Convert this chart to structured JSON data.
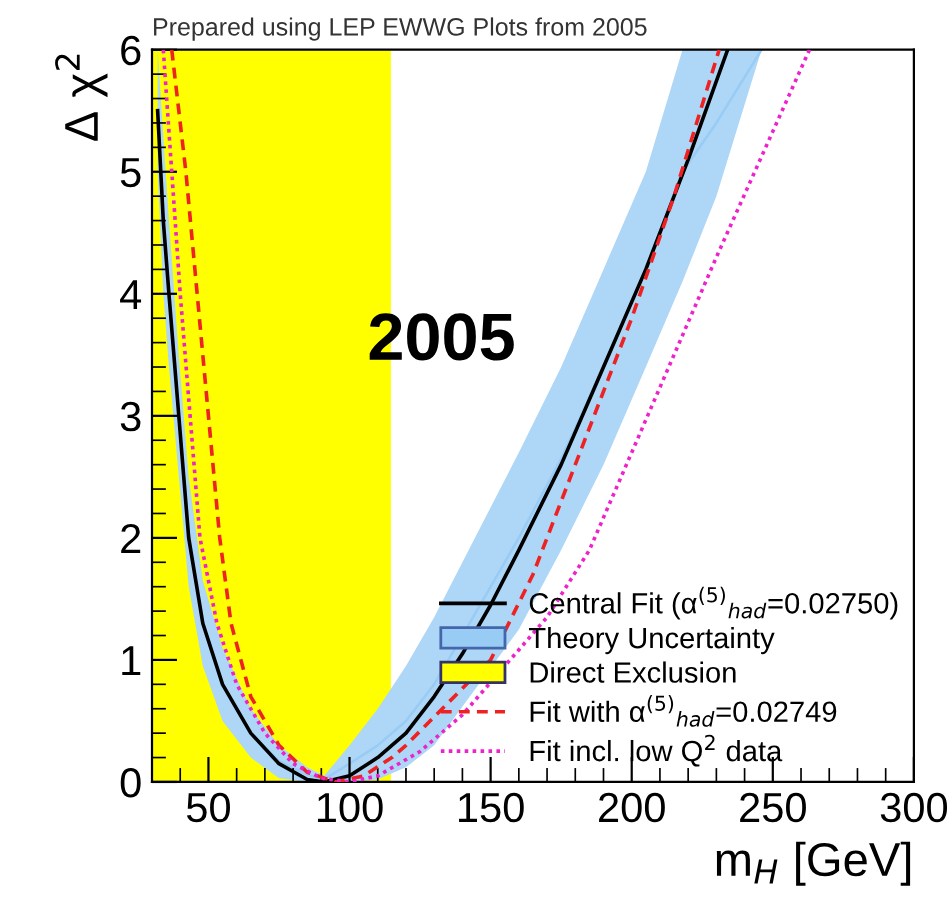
{
  "chart_data": {
    "type": "line",
    "title": "Prepared using LEP EWWG Plots from 2005",
    "xlabel": "m$_{H}$ [GeV]",
    "ylabel": "Δ χ$^{2}$",
    "annotations": [
      "2005"
    ],
    "xlim": [
      30,
      300
    ],
    "xticks": [
      50,
      100,
      150,
      200,
      250,
      300
    ],
    "ylim": [
      0,
      6
    ],
    "yticks": [
      0,
      1,
      2,
      3,
      4,
      5,
      6
    ],
    "grid": false,
    "legend": "bottom right",
    "series": [
      {
        "name": "Central Fit (α$^{(5)}$$_{had}$=0.02750)",
        "color": "#000000",
        "line_style": "solid",
        "x": [
          32,
          34,
          36,
          39.5,
          43,
          48,
          55,
          65,
          75,
          85,
          91,
          100,
          110,
          120,
          130,
          140,
          150,
          160,
          175,
          190,
          205,
          220,
          234
        ],
        "values": [
          5.5,
          4.6,
          4.0,
          3.0,
          2.0,
          1.3,
          0.8,
          0.4,
          0.15,
          0.02,
          0,
          0.05,
          0.2,
          0.4,
          0.7,
          1.05,
          1.45,
          1.9,
          2.6,
          3.4,
          4.2,
          5.1,
          6.0
        ]
      },
      {
        "name": "Theory Uncertainty",
        "color": "#99ccf5",
        "line_style": "solid",
        "x": [
          32,
          34,
          36,
          39.5,
          43,
          48,
          55,
          65,
          75,
          85,
          91,
          100,
          110,
          120,
          130,
          160,
          175,
          190,
          205,
          218,
          230,
          246
        ],
        "values": [
          null,
          null,
          null,
          3.0,
          2.05,
          1.3,
          0.8,
          0.4,
          0.17,
          0.06,
          0.02,
          0.15,
          0.3,
          0.5,
          0.8,
          2.0,
          2.65,
          3.4,
          4.2,
          5.0,
          5.4,
          6.0
        ],
        "lower": [
          5.0,
          4.0,
          3.4,
          2.5,
          1.6,
          0.95,
          0.5,
          0.2,
          0.03,
          0,
          0,
          0,
          0.02,
          0.12,
          0.3,
          1.25,
          1.9,
          2.6,
          3.4,
          4.1,
          4.8,
          6.0
        ],
        "upper": [
          6.0,
          5.3,
          4.6,
          3.5,
          2.5,
          1.65,
          1.1,
          0.6,
          0.3,
          0.12,
          0.05,
          0.3,
          0.6,
          0.95,
          1.35,
          2.7,
          3.4,
          4.2,
          5.0,
          6.0,
          6.0,
          6.0
        ]
      },
      {
        "name": "Direct Exclusion",
        "type": "area",
        "color": "#ffff00",
        "x": [
          30,
          114.4
        ],
        "values": [
          6,
          6
        ]
      },
      {
        "name": "Fit with α$^{(5)}$$_{had}$=0.02749",
        "color": "#ee2222",
        "line_style": "dashed",
        "x": [
          37,
          42,
          46,
          50,
          54,
          58,
          65,
          75,
          85,
          95,
          105,
          115,
          120,
          135,
          150,
          165,
          180,
          200,
          215,
          231
        ],
        "values": [
          6.0,
          5.0,
          4.0,
          3.0,
          2.0,
          1.3,
          0.7,
          0.3,
          0.08,
          0,
          0.05,
          0.2,
          0.3,
          0.65,
          1.0,
          1.7,
          2.6,
          3.8,
          4.8,
          6.0
        ]
      },
      {
        "name": "Fit incl. low Q$^{2}$ data",
        "color": "#ee22cc",
        "line_style": "dotted",
        "x": [
          34,
          37,
          40,
          43.5,
          47,
          53,
          60,
          70,
          80,
          90,
          100,
          110,
          125,
          140,
          155,
          170,
          185,
          200,
          230,
          263
        ],
        "values": [
          6.0,
          5.0,
          4.0,
          3.0,
          2.0,
          1.3,
          0.8,
          0.4,
          0.15,
          0.03,
          0,
          0.05,
          0.25,
          0.55,
          0.95,
          1.35,
          1.9,
          2.7,
          4.3,
          6.0
        ]
      }
    ]
  }
}
